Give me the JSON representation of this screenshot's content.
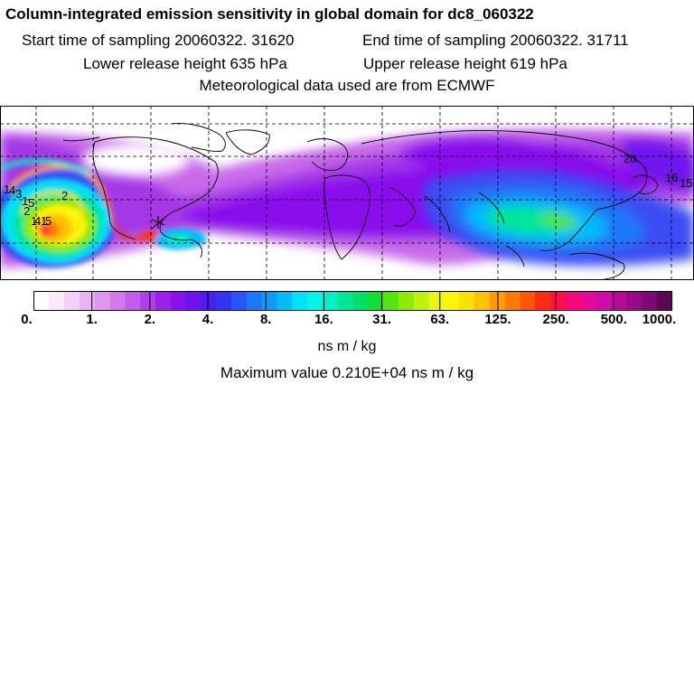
{
  "header": {
    "title": "Column-integrated emission sensitivity in global domain for dc8_060322",
    "start": "Start time of sampling 20060322. 31620",
    "end": "End time of sampling 20060322. 31711",
    "lower": "Lower release height  635 hPa",
    "upper": "Upper release height  619 hPa",
    "met": "Meteorological data used are from ECMWF"
  },
  "map": {
    "labels": [
      "1",
      "4",
      "2",
      "3",
      "1",
      "5",
      "4",
      "2",
      "1",
      "1",
      "5",
      "20",
      "16",
      "15"
    ]
  },
  "colorbar": {
    "ticks": [
      "0.",
      "1.",
      "2.",
      "4.",
      "8.",
      "16.",
      "31.",
      "63.",
      "125.",
      "250.",
      "500.",
      "1000."
    ],
    "colors": [
      "#ffffff",
      "#fbe8fb",
      "#f4d0f6",
      "#eab4f2",
      "#df96ee",
      "#d37aeb",
      "#c45ce8",
      "#b23ee6",
      "#9d21e6",
      "#8a10ec",
      "#6f12ee",
      "#4c1ef0",
      "#3334f2",
      "#2a55f6",
      "#1c78fa",
      "#0c9afb",
      "#05bbfb",
      "#00e1fb",
      "#00f4ea",
      "#00efc6",
      "#00e697",
      "#00df6a",
      "#12df2d",
      "#54e40e",
      "#8ee80a",
      "#bff010",
      "#e7f712",
      "#fff50a",
      "#ffe000",
      "#ffc100",
      "#ff9c00",
      "#ff7900",
      "#ff5600",
      "#ff2c14",
      "#ff1246",
      "#f5087a",
      "#e40a98",
      "#d00aa8",
      "#b5099a",
      "#9a0a88",
      "#7c0a72",
      "#5a0a55"
    ],
    "units": "ns m / kg",
    "max": "Maximum value  0.210E+04 ns m / kg"
  }
}
